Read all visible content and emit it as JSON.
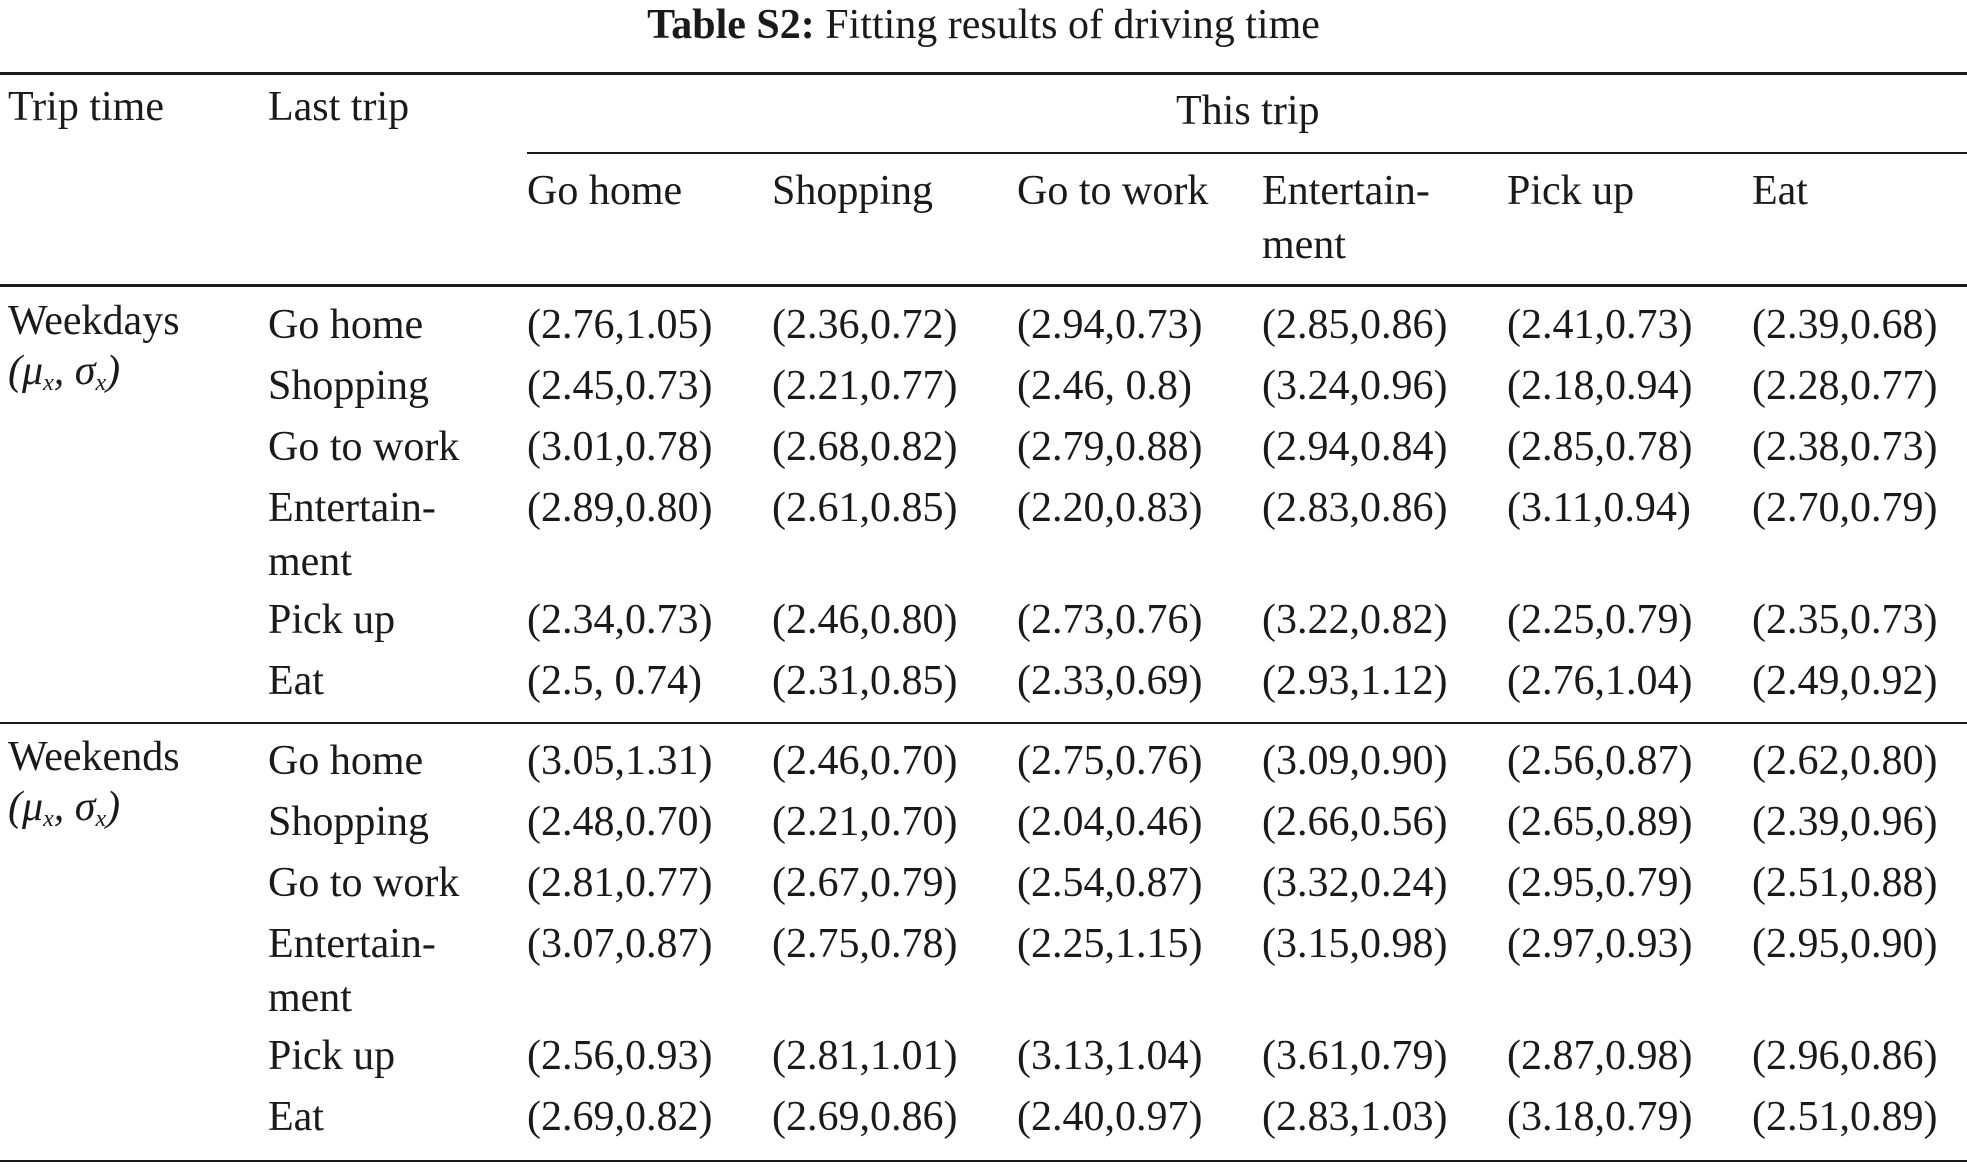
{
  "caption": {
    "label": "Table S2:",
    "text": "Fitting results of driving time"
  },
  "header": {
    "trip_time": "Trip time",
    "last_trip": "Last trip",
    "this_trip": "This trip",
    "columns": [
      [
        "Go home"
      ],
      [
        "Shopping"
      ],
      [
        "Go to work"
      ],
      [
        "Entertain-",
        "ment"
      ],
      [
        "Pick up"
      ],
      [
        "Eat"
      ]
    ]
  },
  "groups": [
    {
      "name": "Weekdays",
      "param": "(μx, σx)",
      "rows": [
        {
          "label": [
            "Go home"
          ],
          "values": [
            "(2.76,1.05)",
            "(2.36,0.72)",
            "(2.94,0.73)",
            "(2.85,0.86)",
            "(2.41,0.73)",
            "(2.39,0.68)"
          ]
        },
        {
          "label": [
            "Shopping"
          ],
          "values": [
            "(2.45,0.73)",
            "(2.21,0.77)",
            "(2.46, 0.8)",
            "(3.24,0.96)",
            "(2.18,0.94)",
            "(2.28,0.77)"
          ]
        },
        {
          "label": [
            "Go to work"
          ],
          "values": [
            "(3.01,0.78)",
            "(2.68,0.82)",
            "(2.79,0.88)",
            "(2.94,0.84)",
            "(2.85,0.78)",
            "(2.38,0.73)"
          ]
        },
        {
          "label": [
            "Entertain-",
            "ment"
          ],
          "values": [
            "(2.89,0.80)",
            "(2.61,0.85)",
            "(2.20,0.83)",
            "(2.83,0.86)",
            "(3.11,0.94)",
            "(2.70,0.79)"
          ]
        },
        {
          "label": [
            "Pick up"
          ],
          "values": [
            "(2.34,0.73)",
            "(2.46,0.80)",
            "(2.73,0.76)",
            "(3.22,0.82)",
            "(2.25,0.79)",
            "(2.35,0.73)"
          ]
        },
        {
          "label": [
            "Eat"
          ],
          "values": [
            "(2.5, 0.74)",
            "(2.31,0.85)",
            "(2.33,0.69)",
            "(2.93,1.12)",
            "(2.76,1.04)",
            "(2.49,0.92)"
          ]
        }
      ]
    },
    {
      "name": "Weekends",
      "param": "(μx, σx)",
      "rows": [
        {
          "label": [
            "Go home"
          ],
          "values": [
            "(3.05,1.31)",
            "(2.46,0.70)",
            "(2.75,0.76)",
            "(3.09,0.90)",
            "(2.56,0.87)",
            "(2.62,0.80)"
          ]
        },
        {
          "label": [
            "Shopping"
          ],
          "values": [
            "(2.48,0.70)",
            "(2.21,0.70)",
            "(2.04,0.46)",
            "(2.66,0.56)",
            "(2.65,0.89)",
            "(2.39,0.96)"
          ]
        },
        {
          "label": [
            "Go to work"
          ],
          "values": [
            "(2.81,0.77)",
            "(2.67,0.79)",
            "(2.54,0.87)",
            "(3.32,0.24)",
            "(2.95,0.79)",
            "(2.51,0.88)"
          ]
        },
        {
          "label": [
            "Entertain-",
            "ment"
          ],
          "values": [
            "(3.07,0.87)",
            "(2.75,0.78)",
            "(2.25,1.15)",
            "(3.15,0.98)",
            "(2.97,0.93)",
            "(2.95,0.90)"
          ]
        },
        {
          "label": [
            "Pick up"
          ],
          "values": [
            "(2.56,0.93)",
            "(2.81,1.01)",
            "(3.13,1.04)",
            "(3.61,0.79)",
            "(2.87,0.98)",
            "(2.96,0.86)"
          ]
        },
        {
          "label": [
            "Eat"
          ],
          "values": [
            "(2.69,0.82)",
            "(2.69,0.86)",
            "(2.40,0.97)",
            "(2.83,1.03)",
            "(3.18,0.79)",
            "(2.51,0.89)"
          ]
        }
      ]
    }
  ]
}
